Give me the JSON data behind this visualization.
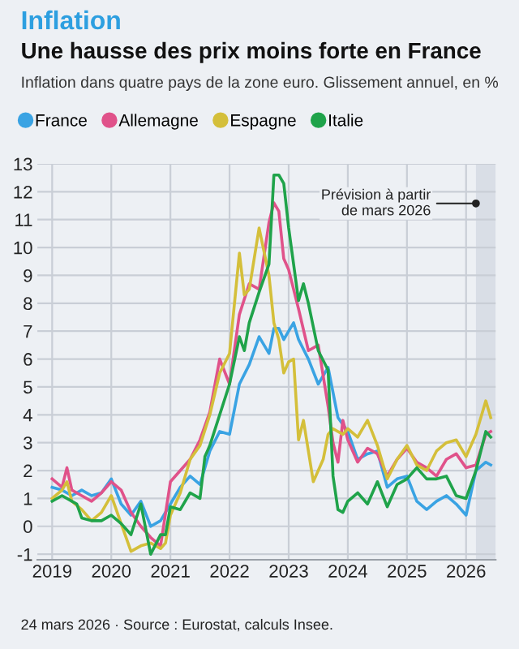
{
  "chart_data": {
    "type": "line",
    "title": "Une hausse des prix moins forte en France",
    "subtitle": "Inflation dans quatre pays de la zone euro. Glissement annuel, en %",
    "annotations": [
      "Inflation",
      "24 mars 2026 · Source : Eurostat, calculs Insee."
    ],
    "legend": "top left",
    "grid": true,
    "marker": "none",
    "line_style": "solid",
    "xlim": [
      "2018-10",
      "2026-07"
    ],
    "xticks": [
      "2019",
      "2020",
      "2021",
      "2022",
      "2023",
      "2024",
      "2025",
      "2026"
    ],
    "ylim": [
      -1.2,
      13
    ],
    "yticks": [
      -1,
      0,
      1,
      2,
      3,
      4,
      5,
      6,
      7,
      8,
      9,
      10,
      11,
      12,
      13
    ],
    "bands": [
      {
        "axis": "x",
        "from": "2026-03",
        "to": "2026-07",
        "label": "Prévision à partir\nde mars 2026",
        "color": "#d9dee6"
      }
    ],
    "series": [
      {
        "name": "France",
        "color": "#3aa3e3",
        "x": [
          "2019-01",
          "2019-03",
          "2019-05",
          "2019-07",
          "2019-09",
          "2019-11",
          "2020-01",
          "2020-03",
          "2020-05",
          "2020-07",
          "2020-09",
          "2020-11",
          "2021-01",
          "2021-03",
          "2021-05",
          "2021-07",
          "2021-09",
          "2021-11",
          "2022-01",
          "2022-03",
          "2022-05",
          "2022-07",
          "2022-09",
          "2022-10",
          "2022-11",
          "2022-12",
          "2023-01",
          "2023-02",
          "2023-03",
          "2023-05",
          "2023-07",
          "2023-09",
          "2023-11",
          "2024-01",
          "2024-03",
          "2024-05",
          "2024-07",
          "2024-09",
          "2024-11",
          "2025-01",
          "2025-03",
          "2025-05",
          "2025-07",
          "2025-09",
          "2025-11",
          "2026-01",
          "2026-03",
          "2026-05",
          "2026-06"
        ],
        "values": [
          1.4,
          1.3,
          1.1,
          1.3,
          1.1,
          1.2,
          1.7,
          0.8,
          0.4,
          0.9,
          0.0,
          0.2,
          0.8,
          1.4,
          1.8,
          1.5,
          2.7,
          3.4,
          3.3,
          5.1,
          5.8,
          6.8,
          6.2,
          7.1,
          7.1,
          6.7,
          7.0,
          7.3,
          6.7,
          6.0,
          5.1,
          5.7,
          3.9,
          3.4,
          2.4,
          2.6,
          2.7,
          1.4,
          1.7,
          1.8,
          0.9,
          0.6,
          0.9,
          1.1,
          0.8,
          0.4,
          2.0,
          2.3,
          2.2
        ]
      },
      {
        "name": "Allemagne",
        "color": "#e0528a",
        "x": [
          "2019-01",
          "2019-03",
          "2019-04",
          "2019-05",
          "2019-07",
          "2019-09",
          "2019-11",
          "2020-01",
          "2020-03",
          "2020-05",
          "2020-07",
          "2020-09",
          "2020-11",
          "2021-01",
          "2021-03",
          "2021-05",
          "2021-07",
          "2021-09",
          "2021-11",
          "2022-01",
          "2022-03",
          "2022-05",
          "2022-07",
          "2022-09",
          "2022-10",
          "2022-11",
          "2022-12",
          "2023-01",
          "2023-03",
          "2023-05",
          "2023-07",
          "2023-09",
          "2023-10",
          "2023-11",
          "2023-12",
          "2024-01",
          "2024-03",
          "2024-05",
          "2024-07",
          "2024-09",
          "2024-11",
          "2025-01",
          "2025-03",
          "2025-05",
          "2025-07",
          "2025-09",
          "2025-11",
          "2026-01",
          "2026-03",
          "2026-05",
          "2026-06"
        ],
        "values": [
          1.7,
          1.4,
          2.1,
          1.3,
          1.1,
          0.9,
          1.2,
          1.6,
          1.3,
          0.5,
          0.0,
          -0.4,
          -0.7,
          1.6,
          2.0,
          2.4,
          3.1,
          4.1,
          6.0,
          5.1,
          7.6,
          8.7,
          8.5,
          10.9,
          11.6,
          11.3,
          9.6,
          9.2,
          7.8,
          6.3,
          6.5,
          4.3,
          3.0,
          2.3,
          3.8,
          3.1,
          2.3,
          2.8,
          2.6,
          1.8,
          2.4,
          2.8,
          2.3,
          2.1,
          1.8,
          2.4,
          2.6,
          2.1,
          2.2,
          3.3,
          3.4
        ]
      },
      {
        "name": "Espagne",
        "color": "#d4bf3a",
        "x": [
          "2019-01",
          "2019-03",
          "2019-04",
          "2019-05",
          "2019-07",
          "2019-09",
          "2019-11",
          "2020-01",
          "2020-03",
          "2020-05",
          "2020-07",
          "2020-09",
          "2020-11",
          "2020-12",
          "2021-01",
          "2021-03",
          "2021-05",
          "2021-07",
          "2021-09",
          "2021-11",
          "2022-01",
          "2022-03",
          "2022-04",
          "2022-05",
          "2022-07",
          "2022-09",
          "2022-10",
          "2022-11",
          "2022-12",
          "2023-01",
          "2023-02",
          "2023-03",
          "2023-04",
          "2023-06",
          "2023-08",
          "2023-09",
          "2023-10",
          "2023-12",
          "2024-01",
          "2024-03",
          "2024-05",
          "2024-07",
          "2024-09",
          "2024-11",
          "2025-01",
          "2025-03",
          "2025-05",
          "2025-07",
          "2025-09",
          "2025-11",
          "2026-01",
          "2026-03",
          "2026-05",
          "2026-06"
        ],
        "values": [
          1.0,
          1.3,
          1.6,
          0.9,
          0.6,
          0.2,
          0.5,
          1.1,
          0.1,
          -0.9,
          -0.7,
          -0.6,
          -0.8,
          -0.6,
          0.4,
          1.2,
          2.4,
          2.9,
          4.0,
          5.5,
          6.2,
          9.8,
          8.3,
          8.5,
          10.7,
          9.0,
          7.3,
          6.7,
          5.5,
          5.9,
          6.0,
          3.1,
          3.8,
          1.6,
          2.4,
          3.3,
          3.5,
          3.3,
          3.5,
          3.2,
          3.8,
          2.9,
          1.7,
          2.4,
          2.9,
          2.2,
          2.0,
          2.7,
          3.0,
          3.1,
          2.5,
          3.3,
          4.5,
          3.9
        ]
      },
      {
        "name": "Italie",
        "color": "#1fa34a",
        "x": [
          "2019-01",
          "2019-03",
          "2019-05",
          "2019-06",
          "2019-07",
          "2019-09",
          "2019-11",
          "2020-01",
          "2020-03",
          "2020-05",
          "2020-07",
          "2020-09",
          "2020-11",
          "2020-12",
          "2021-01",
          "2021-03",
          "2021-05",
          "2021-07",
          "2021-08",
          "2021-09",
          "2021-11",
          "2022-01",
          "2022-03",
          "2022-04",
          "2022-05",
          "2022-07",
          "2022-09",
          "2022-10",
          "2022-11",
          "2022-12",
          "2023-01",
          "2023-03",
          "2023-04",
          "2023-05",
          "2023-07",
          "2023-09",
          "2023-10",
          "2023-11",
          "2023-12",
          "2024-01",
          "2024-03",
          "2024-05",
          "2024-07",
          "2024-09",
          "2024-11",
          "2025-01",
          "2025-03",
          "2025-05",
          "2025-07",
          "2025-09",
          "2025-11",
          "2026-01",
          "2026-03",
          "2026-05",
          "2026-06"
        ],
        "values": [
          0.9,
          1.1,
          0.9,
          0.8,
          0.3,
          0.2,
          0.2,
          0.4,
          0.1,
          -0.3,
          0.8,
          -1.0,
          -0.3,
          -0.3,
          0.7,
          0.6,
          1.2,
          1.0,
          2.5,
          2.9,
          4.0,
          5.1,
          6.8,
          6.3,
          7.3,
          8.4,
          9.4,
          12.6,
          12.6,
          12.3,
          10.7,
          8.1,
          8.7,
          8.0,
          6.3,
          5.6,
          1.8,
          0.6,
          0.5,
          0.9,
          1.2,
          0.8,
          1.6,
          0.7,
          1.5,
          1.7,
          2.1,
          1.7,
          1.7,
          1.8,
          1.1,
          1.0,
          2.0,
          3.4,
          3.2
        ]
      }
    ]
  }
}
